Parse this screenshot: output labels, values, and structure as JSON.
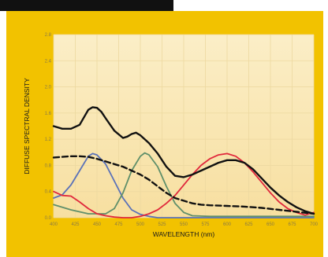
{
  "chart_data": {
    "type": "line",
    "xlabel": "WAVELENGTH (nm)",
    "ylabel": "DIFFUSE SPECTRAL DENSITY",
    "xlim": [
      400,
      700
    ],
    "ylim": [
      0,
      2.8
    ],
    "xticks": [
      400,
      425,
      450,
      475,
      500,
      525,
      550,
      575,
      600,
      625,
      650,
      675,
      700
    ],
    "xtick_labels": [
      "400",
      "425",
      "450",
      "475",
      "500",
      "525",
      "550",
      "575",
      "600",
      "625",
      "650",
      "675",
      "700"
    ],
    "yticks": [
      0,
      0.4,
      0.8,
      1.2,
      1.6,
      2.0,
      2.4,
      2.8
    ],
    "ytick_labels": [
      "0.0",
      "0.4",
      "0.8",
      "1.2",
      "1.6",
      "2.0",
      "2.4",
      "2.8"
    ],
    "grid": true,
    "legend": "none",
    "series": [
      {
        "color": "#111111",
        "style": "solid",
        "x": [
          400,
          410,
          420,
          430,
          440,
          445,
          450,
          455,
          460,
          470,
          480,
          485,
          490,
          495,
          500,
          510,
          520,
          530,
          540,
          550,
          560,
          570,
          580,
          590,
          600,
          610,
          620,
          630,
          640,
          650,
          660,
          670,
          680,
          690,
          700
        ],
        "y": [
          1.4,
          1.36,
          1.36,
          1.42,
          1.65,
          1.69,
          1.68,
          1.62,
          1.52,
          1.33,
          1.22,
          1.24,
          1.28,
          1.3,
          1.26,
          1.14,
          0.98,
          0.78,
          0.64,
          0.62,
          0.66,
          0.72,
          0.78,
          0.84,
          0.88,
          0.88,
          0.84,
          0.74,
          0.6,
          0.46,
          0.34,
          0.24,
          0.16,
          0.1,
          0.06
        ]
      },
      {
        "color": "#111111",
        "style": "dashed",
        "x": [
          400,
          410,
          420,
          430,
          440,
          450,
          460,
          470,
          480,
          490,
          500,
          510,
          520,
          530,
          540,
          550,
          560,
          570,
          580,
          600,
          620,
          640,
          660,
          680,
          700
        ],
        "y": [
          0.92,
          0.93,
          0.94,
          0.94,
          0.93,
          0.9,
          0.86,
          0.82,
          0.78,
          0.72,
          0.66,
          0.58,
          0.48,
          0.38,
          0.3,
          0.26,
          0.22,
          0.2,
          0.19,
          0.18,
          0.17,
          0.15,
          0.12,
          0.09,
          0.06
        ]
      },
      {
        "color": "#5b72b8",
        "style": "solid",
        "x": [
          400,
          410,
          420,
          430,
          440,
          445,
          450,
          460,
          470,
          480,
          490,
          500,
          510,
          520,
          540,
          560,
          600,
          650,
          700
        ],
        "y": [
          0.3,
          0.35,
          0.5,
          0.72,
          0.94,
          0.98,
          0.96,
          0.82,
          0.56,
          0.3,
          0.12,
          0.05,
          0.02,
          0.0,
          0.0,
          0.0,
          0.0,
          0.0,
          0.0
        ]
      },
      {
        "color": "#5f8f6a",
        "style": "solid",
        "x": [
          400,
          420,
          440,
          460,
          470,
          480,
          490,
          500,
          505,
          510,
          520,
          530,
          540,
          550,
          560,
          580,
          600,
          650,
          700
        ],
        "y": [
          0.2,
          0.12,
          0.06,
          0.06,
          0.14,
          0.38,
          0.72,
          0.94,
          0.99,
          0.96,
          0.78,
          0.48,
          0.22,
          0.08,
          0.03,
          0.02,
          0.02,
          0.02,
          0.02
        ]
      },
      {
        "color": "#e0283c",
        "style": "solid",
        "x": [
          400,
          410,
          420,
          430,
          440,
          450,
          460,
          470,
          480,
          490,
          500,
          510,
          520,
          530,
          540,
          550,
          560,
          570,
          580,
          590,
          600,
          610,
          620,
          630,
          640,
          650,
          660,
          670,
          680,
          690,
          700
        ],
        "y": [
          0.4,
          0.34,
          0.33,
          0.24,
          0.14,
          0.06,
          0.03,
          0.01,
          0.0,
          0.0,
          0.02,
          0.06,
          0.12,
          0.22,
          0.34,
          0.5,
          0.66,
          0.8,
          0.9,
          0.96,
          0.98,
          0.94,
          0.84,
          0.7,
          0.54,
          0.38,
          0.24,
          0.14,
          0.08,
          0.04,
          0.08
        ]
      }
    ]
  }
}
